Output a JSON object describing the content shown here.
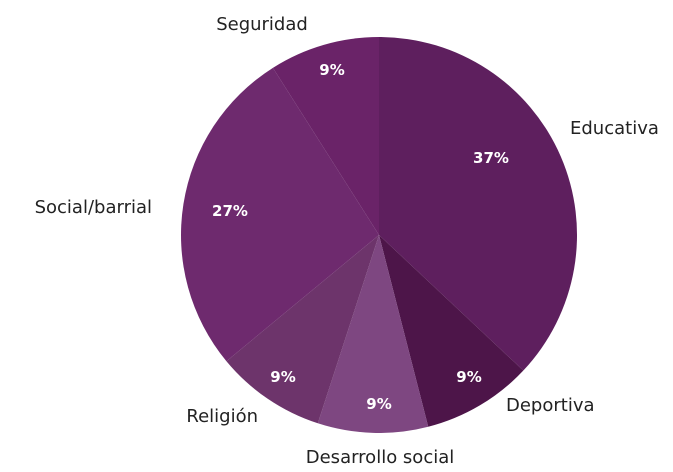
{
  "chart_data": {
    "type": "pie",
    "title": "",
    "legend": "none",
    "slices": [
      {
        "label": "Educativa",
        "value": 37,
        "value_label": "37%",
        "color": "#5e1f5e"
      },
      {
        "label": "Deportiva",
        "value": 9,
        "value_label": "9%",
        "color": "#4d1549"
      },
      {
        "label": "Desarrollo social",
        "value": 9,
        "value_label": "9%",
        "color": "#7e4781"
      },
      {
        "label": "Religión",
        "value": 9,
        "value_label": "9%",
        "color": "#6d346b"
      },
      {
        "label": "Social/barrial",
        "value": 27,
        "value_label": "27%",
        "color": "#6e2a6e"
      },
      {
        "label": "Seguridad",
        "value": 9,
        "value_label": "9%",
        "color": "#6a2368"
      }
    ]
  }
}
